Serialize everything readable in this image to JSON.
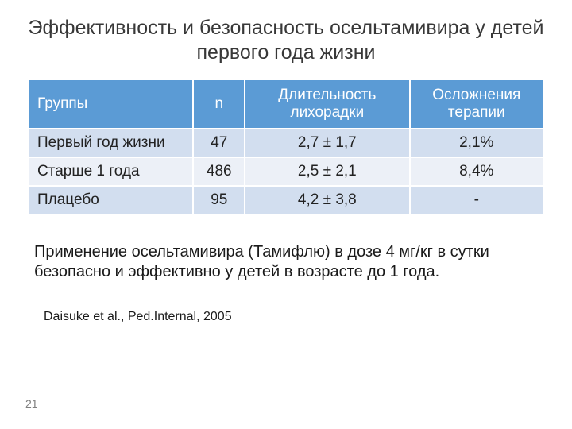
{
  "title": "Эффективность и безопасность осельтамивира у детей первого года жизни",
  "table": {
    "header_bg": "#5b9bd5",
    "header_color": "#ffffff",
    "row_colors": [
      "#d2deef",
      "#ecf0f7",
      "#d2deef"
    ],
    "columns": [
      "Группы",
      "n",
      "Длительность лихорадки",
      "Осложнения терапии"
    ],
    "rows": [
      [
        "Первый год жизни",
        "47",
        "2,7 ± 1,7",
        "2,1%"
      ],
      [
        "Старше 1 года",
        "486",
        "2,5 ± 2,1",
        "8,4%"
      ],
      [
        "Плацебо",
        "95",
        "4,2 ± 3,8",
        "-"
      ]
    ]
  },
  "body_text": "Применение осельтамивира (Тамифлю) в дозе 4 мг/кг в сутки безопасно и эффективно у детей в возрасте до 1 года.",
  "citation": "Daisuke et al., Ped.Internal, 2005",
  "page_number": "21"
}
